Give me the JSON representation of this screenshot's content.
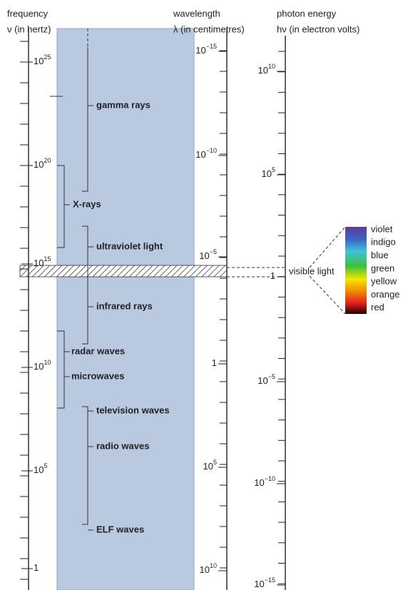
{
  "axes": {
    "frequency": {
      "title": "frequency",
      "subtitle": "ν (in hertz)",
      "labels": [
        {
          "base": "10",
          "exp": "25"
        },
        {
          "base": "10",
          "exp": "20"
        },
        {
          "base": "10",
          "exp": "15"
        },
        {
          "base": "10",
          "exp": "10"
        },
        {
          "base": "10",
          "exp": "5"
        },
        {
          "base": "1"
        }
      ]
    },
    "wavelength": {
      "title": "wavelength",
      "subtitle": "λ (in centimetres)",
      "labels": [
        {
          "base": "10",
          "exp": "−15"
        },
        {
          "base": "10",
          "exp": "−10"
        },
        {
          "base": "10",
          "exp": "−5"
        },
        {
          "base": "1"
        },
        {
          "base": "10",
          "exp": "5"
        },
        {
          "base": "10",
          "exp": "10"
        }
      ]
    },
    "energy": {
      "title": "photon energy",
      "subtitle": "hν (in electron volts)",
      "labels": [
        {
          "base": "10",
          "exp": "10"
        },
        {
          "base": "10",
          "exp": "5"
        },
        {
          "base": "1"
        },
        {
          "base": "10",
          "exp": "−5"
        },
        {
          "base": "10",
          "exp": "−10"
        },
        {
          "base": "10",
          "exp": "−15"
        }
      ]
    }
  },
  "bands": [
    "gamma rays",
    "X-rays",
    "ultraviolet light",
    "infrared rays",
    "radar waves",
    "microwaves",
    "television waves",
    "radio waves",
    "ELF waves"
  ],
  "visible_label": "visible light",
  "spectrum": [
    "violet",
    "indigo",
    "blue",
    "green",
    "yellow",
    "orange",
    "red"
  ]
}
